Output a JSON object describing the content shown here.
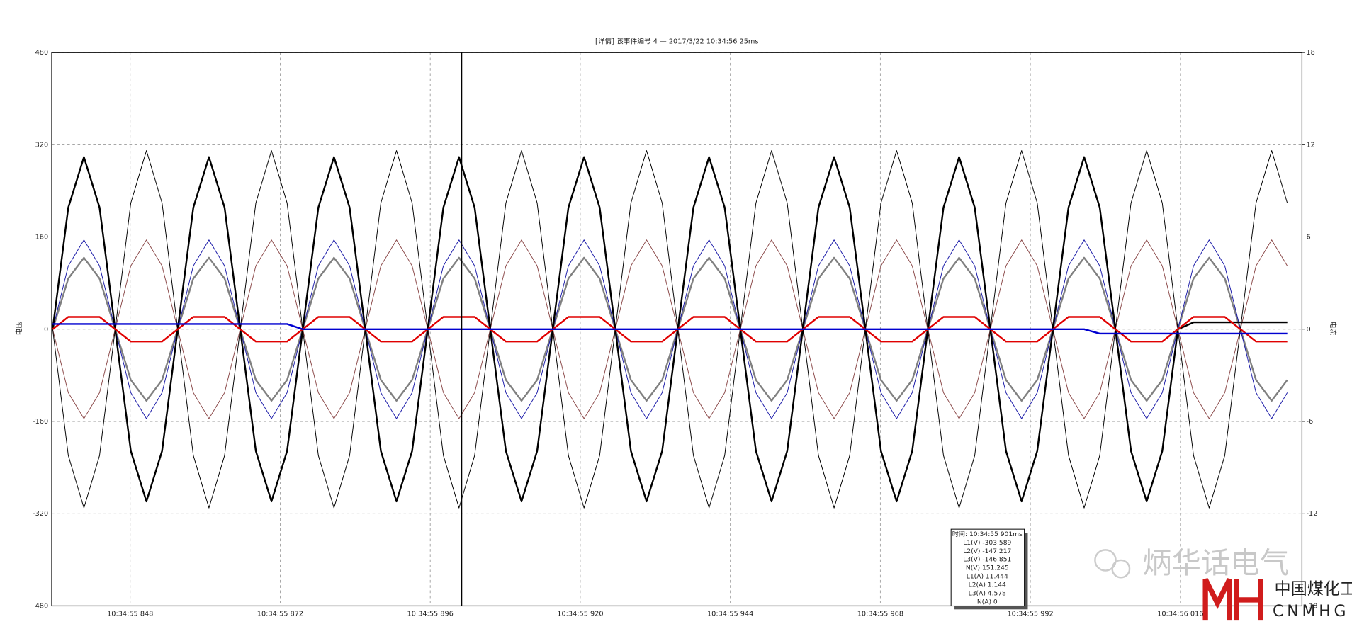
{
  "chart_data": {
    "type": "line",
    "title": "[详情] 该事件编号 4 — 2017/3/22 10:34:56 25ms",
    "y_label": "电压",
    "y2_label": "电流",
    "grid": true,
    "xlim": [
      835.45,
      1035.45
    ],
    "xticks": [
      {
        "value": 848,
        "label": "10:34:55 848"
      },
      {
        "value": 872,
        "label": "10:34:55 872"
      },
      {
        "value": 896,
        "label": "10:34:55 896"
      },
      {
        "value": 920,
        "label": "10:34:55 920"
      },
      {
        "value": 944,
        "label": "10:34:55 944"
      },
      {
        "value": 968,
        "label": "10:34:55 968"
      },
      {
        "value": 992,
        "label": "10:34:55 992"
      },
      {
        "value": 1016,
        "label": "10:34:56 016"
      }
    ],
    "ylim": [
      -480,
      480
    ],
    "yticks": [
      480,
      320,
      160,
      0,
      -160,
      -320,
      -480
    ],
    "y2lim": [
      -18,
      18
    ],
    "y2ticks": [
      18,
      12,
      6,
      0,
      -6,
      -12,
      -18
    ],
    "cursor_x": 901,
    "x": [
      835.6,
      838.1,
      840.6,
      843.1,
      845.6,
      848.1,
      850.6,
      853.1,
      855.6,
      858.1,
      860.6,
      863.1,
      865.6,
      868.1,
      870.6,
      873.1,
      875.6,
      878.1,
      880.6,
      883.1,
      885.6,
      888.1,
      890.6,
      893.1,
      895.6,
      898.1,
      900.6,
      903.1,
      905.6,
      908.1,
      910.6,
      913.1,
      915.6,
      918.1,
      920.6,
      923.1,
      925.6,
      928.1,
      930.6,
      933.1,
      935.6,
      938.1,
      940.6,
      943.1,
      945.6,
      948.1,
      950.6,
      953.1,
      955.6,
      958.1,
      960.6,
      963.1,
      965.6,
      968.1,
      970.6,
      973.1,
      975.6,
      978.1,
      980.6,
      983.1,
      985.6,
      988.1,
      990.6,
      993.1,
      995.6,
      998.1,
      1000.6,
      1003.1,
      1005.6,
      1008.1,
      1010.6,
      1013.1,
      1015.6,
      1018.1,
      1020.6,
      1023.1,
      1025.6,
      1028.1,
      1030.6,
      1033.1
    ],
    "series": [
      {
        "color": "#8c4a4a",
        "width": 0.8,
        "axis": "y",
        "values": [
          0,
          -110,
          -155,
          -110,
          0,
          110,
          155,
          110,
          0,
          -110,
          -155,
          -110,
          0,
          110,
          155,
          110,
          0,
          -110,
          -155,
          -110,
          0,
          110,
          155,
          110,
          0,
          -110,
          -155,
          -110,
          0,
          110,
          155,
          110,
          0,
          -110,
          -155,
          -110,
          0,
          110,
          155,
          110,
          0,
          -110,
          -155,
          -110,
          0,
          110,
          155,
          110,
          0,
          -110,
          -155,
          -110,
          0,
          110,
          155,
          110,
          0,
          -110,
          -155,
          -110,
          0,
          110,
          155,
          110,
          0,
          -110,
          -155,
          -110,
          0,
          110,
          155,
          110,
          0,
          -110,
          -155,
          -110,
          0,
          110,
          155,
          110
        ]
      },
      {
        "color": "#808080",
        "width": 2,
        "axis": "y",
        "values": [
          0,
          88,
          124,
          88,
          0,
          -88,
          -124,
          -88,
          0,
          88,
          124,
          88,
          0,
          -88,
          -124,
          -88,
          0,
          88,
          124,
          88,
          0,
          -88,
          -124,
          -88,
          0,
          88,
          124,
          88,
          0,
          -88,
          -124,
          -88,
          0,
          88,
          124,
          88,
          0,
          -88,
          -124,
          -88,
          0,
          88,
          124,
          88,
          0,
          -88,
          -124,
          -88,
          0,
          88,
          124,
          88,
          0,
          -88,
          -124,
          -88,
          0,
          88,
          124,
          88,
          0,
          -88,
          -124,
          -88,
          0,
          88,
          124,
          88,
          0,
          -88,
          -124,
          -88,
          0,
          88,
          124,
          88,
          0,
          -88,
          -124,
          -88
        ]
      },
      {
        "color": "#1a1aa8",
        "width": 0.8,
        "axis": "y",
        "values": [
          0,
          110,
          155,
          110,
          0,
          -110,
          -155,
          -110,
          0,
          110,
          155,
          110,
          0,
          -110,
          -155,
          -110,
          0,
          110,
          155,
          110,
          0,
          -110,
          -155,
          -110,
          0,
          110,
          155,
          110,
          0,
          -110,
          -155,
          -110,
          0,
          110,
          155,
          110,
          0,
          -110,
          -155,
          -110,
          0,
          110,
          155,
          110,
          0,
          -110,
          -155,
          -110,
          0,
          110,
          155,
          110,
          0,
          -110,
          -155,
          -110,
          0,
          110,
          155,
          110,
          0,
          -110,
          -155,
          -110,
          0,
          110,
          155,
          110,
          0,
          -110,
          -155,
          -110,
          0,
          110,
          155,
          110,
          0,
          -110,
          -155,
          -110
        ]
      },
      {
        "color": "#000000",
        "width": 0.8,
        "axis": "y",
        "values": [
          0,
          -219,
          -310,
          -219,
          0,
          219,
          310,
          219,
          0,
          -219,
          -310,
          -219,
          0,
          219,
          310,
          219,
          0,
          -219,
          -310,
          -219,
          0,
          219,
          310,
          219,
          0,
          -219,
          -310,
          -219,
          0,
          219,
          310,
          219,
          0,
          -219,
          -310,
          -219,
          0,
          219,
          310,
          219,
          0,
          -219,
          -310,
          -219,
          0,
          219,
          310,
          219,
          0,
          -219,
          -310,
          -219,
          0,
          219,
          310,
          219,
          0,
          -219,
          -310,
          -219,
          0,
          219,
          310,
          219,
          0,
          -219,
          -310,
          -219,
          0,
          219,
          310,
          219,
          0,
          -219,
          -310,
          -219,
          0,
          219,
          310,
          219
        ]
      },
      {
        "color": "#000000",
        "width": 2,
        "axis": "y2",
        "values": [
          0,
          7.92,
          11.2,
          7.92,
          0,
          -7.92,
          -11.2,
          -7.92,
          0,
          7.92,
          11.2,
          7.92,
          0,
          -7.92,
          -11.2,
          -7.92,
          0,
          7.92,
          11.2,
          7.92,
          0,
          -7.92,
          -11.2,
          -7.92,
          0,
          7.92,
          11.2,
          7.92,
          0,
          -7.92,
          -11.2,
          -7.92,
          0,
          7.92,
          11.2,
          7.92,
          0,
          -7.92,
          -11.2,
          -7.92,
          0,
          7.92,
          11.2,
          7.92,
          0,
          -7.92,
          -11.2,
          -7.92,
          0,
          7.92,
          11.2,
          7.92,
          0,
          -7.92,
          -11.2,
          -7.92,
          0,
          7.92,
          11.2,
          7.92,
          0,
          -7.92,
          -11.2,
          -7.92,
          0,
          7.92,
          11.2,
          7.92,
          0,
          -7.92,
          -11.2,
          -7.92,
          0,
          0.45,
          0.45,
          0.45,
          0.45,
          0.45,
          0.45,
          0.45
        ]
      },
      {
        "color": "#e00000",
        "width": 2,
        "axis": "y2",
        "values": [
          0,
          0.8,
          0.8,
          0.8,
          0,
          -0.8,
          -0.8,
          -0.8,
          0,
          0.8,
          0.8,
          0.8,
          0,
          -0.8,
          -0.8,
          -0.8,
          0,
          0.8,
          0.8,
          0.8,
          0,
          -0.8,
          -0.8,
          -0.8,
          0,
          0.8,
          0.8,
          0.8,
          0,
          -0.8,
          -0.8,
          -0.8,
          0,
          0.8,
          0.8,
          0.8,
          0,
          -0.8,
          -0.8,
          -0.8,
          0,
          0.8,
          0.8,
          0.8,
          0,
          -0.8,
          -0.8,
          -0.8,
          0,
          0.8,
          0.8,
          0.8,
          0,
          -0.8,
          -0.8,
          -0.8,
          0,
          0.8,
          0.8,
          0.8,
          0,
          -0.8,
          -0.8,
          -0.8,
          0,
          0.8,
          0.8,
          0.8,
          0,
          -0.8,
          -0.8,
          -0.8,
          0,
          0.8,
          0.8,
          0.8,
          0,
          -0.8,
          -0.8,
          -0.8
        ]
      },
      {
        "color": "#0000d0",
        "width": 2,
        "axis": "y2",
        "values": [
          0.34,
          0.34,
          0.34,
          0.34,
          0.34,
          0.34,
          0.34,
          0.34,
          0.34,
          0.34,
          0.34,
          0.34,
          0.34,
          0.34,
          0.34,
          0.34,
          0,
          0,
          0,
          0,
          0,
          0,
          0,
          0,
          0,
          0,
          0,
          0,
          0,
          0,
          0,
          0,
          0,
          0,
          0,
          0,
          0,
          0,
          0,
          0,
          0,
          0,
          0,
          0,
          0,
          0,
          0,
          0,
          0,
          0,
          0,
          0,
          0,
          0,
          0,
          0,
          0,
          0,
          0,
          0,
          0,
          0,
          0,
          0,
          0,
          0,
          0,
          -0.28,
          -0.28,
          -0.28,
          -0.28,
          -0.28,
          -0.28,
          -0.28,
          -0.28,
          -0.28,
          -0.28,
          -0.28,
          -0.28,
          -0.28
        ]
      }
    ],
    "tooltip": {
      "lines": [
        "时间: 10:34:55 901ms",
        "L1(V) -303.589",
        "L2(V) -147.217",
        "L3(V) -146.851",
        "N(V) 151.245",
        "L1(A) 11.444",
        "L2(A) 1.144",
        "L3(A) 4.578",
        "N(A) 0"
      ]
    }
  },
  "watermark": {
    "text": "炳华话电气",
    "logo_cn": "中国煤化工",
    "logo_en": "CNMHG"
  }
}
